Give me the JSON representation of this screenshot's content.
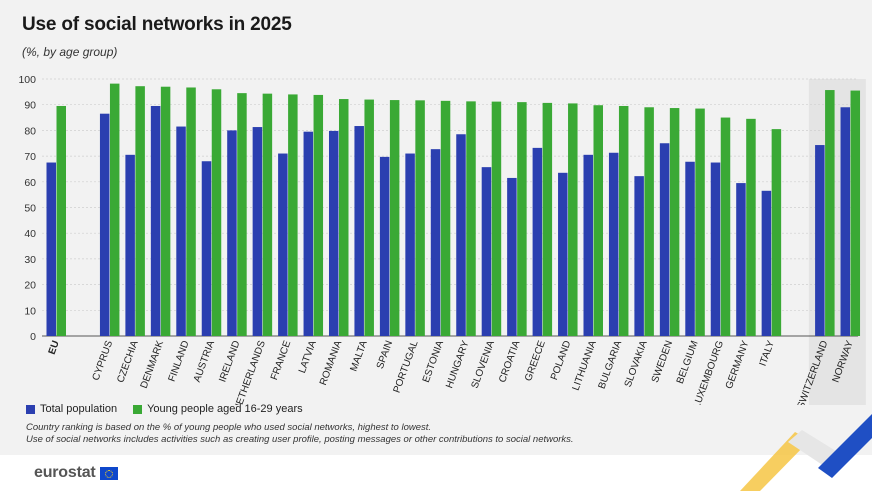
{
  "title": "Use of social networks in 2025",
  "subtitle": "(%, by age group)",
  "legend": {
    "total": "Total population",
    "young": "Young people aged 16-29 years"
  },
  "notes": {
    "line1": "Country ranking is based on the % of young people who used social networks, highest to lowest.",
    "line2": "Use of social networks includes activities such as creating user profile, posting messages or other contributions to social networks."
  },
  "logo": {
    "text": "eurostat",
    "icon": "eu-flag-icon"
  },
  "colors": {
    "total": "#2b3fb0",
    "young": "#3aa935",
    "highlight_bg": "#e4e4e4",
    "panel_bg": "#f2f2f2"
  },
  "chart_data": {
    "type": "bar",
    "title": "Use of social networks in 2025",
    "subtitle": "(%, by age group)",
    "ylim": [
      0,
      100
    ],
    "yticks": [
      0,
      10,
      20,
      30,
      40,
      50,
      60,
      70,
      80,
      90,
      100
    ],
    "grid": true,
    "legend_position": "bottom-left",
    "categories": [
      "EU",
      "CYPRUS",
      "CZECHIA",
      "DENMARK",
      "FINLAND",
      "AUSTRIA",
      "IRELAND",
      "NETHERLANDS",
      "FRANCE",
      "LATVIA",
      "ROMANIA",
      "MALTA",
      "SPAIN",
      "PORTUGAL",
      "ESTONIA",
      "HUNGARY",
      "SLOVENIA",
      "CROATIA",
      "GREECE",
      "POLAND",
      "LITHUANIA",
      "BULGARIA",
      "SLOVAKIA",
      "SWEDEN",
      "BELGIUM",
      "LUXEMBOURG",
      "GERMANY",
      "ITALY",
      "SWITZERLAND",
      "NORWAY"
    ],
    "groups": [
      {
        "categories": [
          "EU"
        ]
      },
      {
        "categories": [
          "CYPRUS",
          "CZECHIA",
          "DENMARK",
          "FINLAND",
          "AUSTRIA",
          "IRELAND",
          "NETHERLANDS",
          "FRANCE",
          "LATVIA",
          "ROMANIA",
          "MALTA",
          "SPAIN",
          "PORTUGAL",
          "ESTONIA",
          "HUNGARY",
          "SLOVENIA",
          "CROATIA",
          "GREECE",
          "POLAND",
          "LITHUANIA",
          "BULGARIA",
          "SLOVAKIA",
          "SWEDEN",
          "BELGIUM",
          "LUXEMBOURG",
          "GERMANY",
          "ITALY"
        ]
      },
      {
        "categories": [
          "SWITZERLAND",
          "NORWAY"
        ],
        "highlighted": true
      }
    ],
    "series": [
      {
        "name": "Total population",
        "color": "#2b3fb0",
        "values": [
          67.5,
          86.5,
          70.5,
          89.5,
          81.5,
          68.0,
          80.0,
          81.3,
          71.0,
          79.5,
          79.8,
          81.7,
          69.7,
          71.0,
          72.7,
          78.5,
          65.7,
          61.5,
          73.2,
          63.5,
          70.5,
          71.3,
          62.2,
          75.0,
          67.8,
          67.5,
          59.5,
          56.5,
          74.3,
          89.0
        ]
      },
      {
        "name": "Young people aged 16-29 years",
        "color": "#3aa935",
        "values": [
          89.5,
          98.2,
          97.2,
          97.0,
          96.7,
          96.0,
          94.5,
          94.3,
          94.0,
          93.8,
          92.2,
          92.0,
          91.8,
          91.7,
          91.5,
          91.3,
          91.2,
          91.0,
          90.7,
          90.5,
          89.8,
          89.5,
          89.0,
          88.7,
          88.5,
          85.0,
          84.5,
          80.5,
          95.7,
          95.5
        ]
      }
    ]
  }
}
